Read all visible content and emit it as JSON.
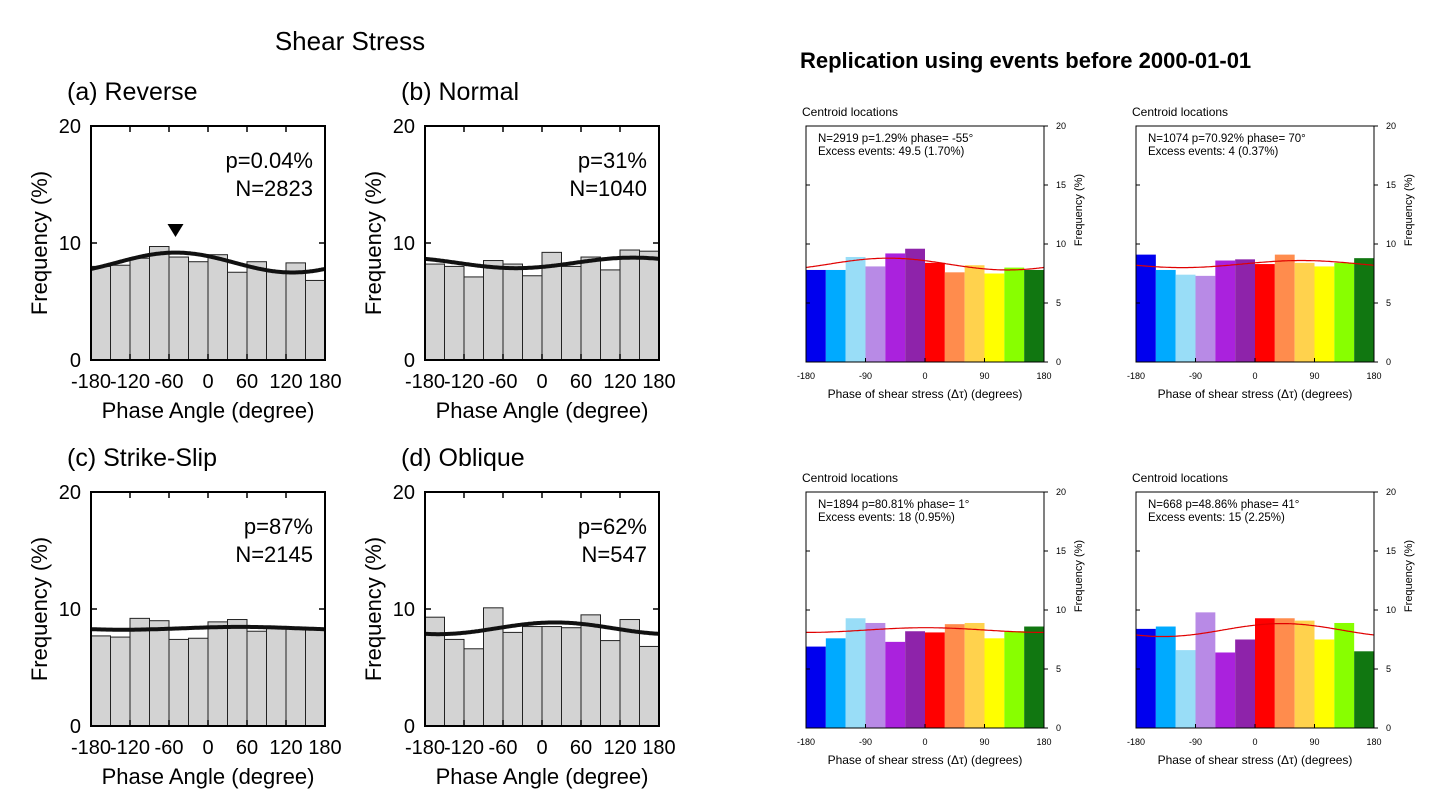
{
  "left_title": "Shear Stress",
  "right_title": "Replication using events before 2000-01-01",
  "chart_data": [
    {
      "type": "bar",
      "style": "gray",
      "title": "(a) Reverse",
      "xlabel": "Phase Angle (degree)",
      "ylabel": "Frequency (%)",
      "xlim": [
        -180,
        180
      ],
      "ylim": [
        0,
        20
      ],
      "xticks": [
        -180,
        -120,
        -60,
        0,
        60,
        120,
        180
      ],
      "yticks": [
        0,
        10,
        20
      ],
      "annotations": [
        "p=0.04%",
        "N=2823"
      ],
      "bin_edges": [
        -180,
        -150,
        -120,
        -90,
        -60,
        -30,
        0,
        30,
        60,
        90,
        120,
        150,
        180
      ],
      "values": [
        8.0,
        8.1,
        8.7,
        9.7,
        8.8,
        8.4,
        9.0,
        7.5,
        8.4,
        7.6,
        8.3,
        6.8
      ],
      "fit": {
        "mean": 8.33,
        "amp": 0.85,
        "phase": -50
      },
      "marker_at": -50
    },
    {
      "type": "bar",
      "style": "gray",
      "title": "(b) Normal",
      "xlabel": "Phase Angle (degree)",
      "ylabel": "Frequency (%)",
      "xlim": [
        -180,
        180
      ],
      "ylim": [
        0,
        20
      ],
      "xticks": [
        -180,
        -120,
        -60,
        0,
        60,
        120,
        180
      ],
      "yticks": [
        0,
        10,
        20
      ],
      "annotations": [
        "p=31%",
        "N=1040"
      ],
      "bin_edges": [
        -180,
        -150,
        -120,
        -90,
        -60,
        -30,
        0,
        30,
        60,
        90,
        120,
        150,
        180
      ],
      "values": [
        8.2,
        8.0,
        7.1,
        8.5,
        8.2,
        7.2,
        9.2,
        8.0,
        8.8,
        7.7,
        9.4,
        9.3
      ],
      "fit": {
        "mean": 8.3,
        "amp": 0.45,
        "phase": 140
      },
      "marker_at": null
    },
    {
      "type": "bar",
      "style": "gray",
      "title": "(c) Strike-Slip",
      "xlabel": "Phase Angle (degree)",
      "ylabel": "Frequency (%)",
      "xlim": [
        -180,
        180
      ],
      "ylim": [
        0,
        20
      ],
      "xticks": [
        -180,
        -120,
        -60,
        0,
        60,
        120,
        180
      ],
      "yticks": [
        0,
        10,
        20
      ],
      "annotations": [
        "p=87%",
        "N=2145"
      ],
      "bin_edges": [
        -180,
        -150,
        -120,
        -90,
        -60,
        -30,
        0,
        30,
        60,
        90,
        120,
        150,
        180
      ],
      "values": [
        7.7,
        7.6,
        9.2,
        9.0,
        7.4,
        7.5,
        8.9,
        9.1,
        8.1,
        8.5,
        8.4,
        8.3
      ],
      "fit": {
        "mean": 8.35,
        "amp": 0.12,
        "phase": 50
      },
      "marker_at": null
    },
    {
      "type": "bar",
      "style": "gray",
      "title": "(d) Oblique",
      "xlabel": "Phase Angle (degree)",
      "ylabel": "Frequency (%)",
      "xlim": [
        -180,
        180
      ],
      "ylim": [
        0,
        20
      ],
      "xticks": [
        -180,
        -120,
        -60,
        0,
        60,
        120,
        180
      ],
      "yticks": [
        0,
        10,
        20
      ],
      "annotations": [
        "p=62%",
        "N=547"
      ],
      "bin_edges": [
        -180,
        -150,
        -120,
        -90,
        -60,
        -30,
        0,
        30,
        60,
        90,
        120,
        150,
        180
      ],
      "values": [
        9.3,
        7.4,
        6.6,
        10.1,
        8.0,
        8.5,
        8.5,
        8.4,
        9.5,
        7.3,
        9.1,
        6.8
      ],
      "fit": {
        "mean": 8.35,
        "amp": 0.5,
        "phase": 20
      },
      "marker_at": null
    },
    {
      "type": "bar",
      "style": "rainbow",
      "title": "Centroid locations",
      "xlabel": "Phase of shear stress (Δτ) (degrees)",
      "ylabel": "Frequency (%)",
      "xlim": [
        -180,
        180
      ],
      "ylim": [
        0,
        20
      ],
      "xticks": [
        -180,
        -90,
        0,
        90,
        180
      ],
      "yticks": [
        0,
        5,
        10,
        15,
        20
      ],
      "annotations": [
        "N=2919   p=1.29%   phase= -55°",
        "Excess events: 49.5 (1.70%)"
      ],
      "bin_edges": [
        -180,
        -150,
        -120,
        -90,
        -60,
        -30,
        0,
        30,
        60,
        90,
        120,
        150,
        180
      ],
      "values": [
        7.8,
        7.8,
        8.9,
        8.1,
        9.2,
        9.6,
        8.4,
        7.6,
        8.2,
        7.5,
        8.0,
        7.8
      ],
      "fit": {
        "mean": 8.3,
        "amp": 0.5,
        "phase": -55
      }
    },
    {
      "type": "bar",
      "style": "rainbow",
      "title": "Centroid locations",
      "xlabel": "Phase of shear stress (Δτ) (degrees)",
      "ylabel": "Frequency (%)",
      "xlim": [
        -180,
        180
      ],
      "ylim": [
        0,
        20
      ],
      "xticks": [
        -180,
        -90,
        0,
        90,
        180
      ],
      "yticks": [
        0,
        5,
        10,
        15,
        20
      ],
      "annotations": [
        "N=1074   p=70.92%   phase= 70°",
        "Excess events: 4 (0.37%)"
      ],
      "bin_edges": [
        -180,
        -150,
        -120,
        -90,
        -60,
        -30,
        0,
        30,
        60,
        90,
        120,
        150,
        180
      ],
      "values": [
        9.1,
        7.8,
        7.4,
        7.3,
        8.6,
        8.7,
        8.3,
        9.1,
        8.4,
        8.1,
        8.4,
        8.8
      ],
      "fit": {
        "mean": 8.3,
        "amp": 0.3,
        "phase": 70
      }
    },
    {
      "type": "bar",
      "style": "rainbow",
      "title": "Centroid locations",
      "xlabel": "Phase of shear stress (Δτ) (degrees)",
      "ylabel": "Frequency (%)",
      "xlim": [
        -180,
        180
      ],
      "ylim": [
        0,
        20
      ],
      "xticks": [
        -180,
        -90,
        0,
        90,
        180
      ],
      "yticks": [
        0,
        5,
        10,
        15,
        20
      ],
      "annotations": [
        "N=1894   p=80.81%   phase= 1°",
        "Excess events: 18 (0.95%)"
      ],
      "bin_edges": [
        -180,
        -150,
        -120,
        -90,
        -60,
        -30,
        0,
        30,
        60,
        90,
        120,
        150,
        180
      ],
      "values": [
        6.9,
        7.6,
        9.3,
        8.9,
        7.3,
        8.2,
        8.1,
        8.8,
        8.9,
        7.6,
        8.2,
        8.6
      ],
      "fit": {
        "mean": 8.3,
        "amp": 0.2,
        "phase": 1
      }
    },
    {
      "type": "bar",
      "style": "rainbow",
      "title": "Centroid locations",
      "xlabel": "Phase of shear stress (Δτ) (degrees)",
      "ylabel": "Frequency (%)",
      "xlim": [
        -180,
        180
      ],
      "ylim": [
        0,
        20
      ],
      "xticks": [
        -180,
        -90,
        0,
        90,
        180
      ],
      "yticks": [
        0,
        5,
        10,
        15,
        20
      ],
      "annotations": [
        "N=668   p=48.86%   phase= 41°",
        "Excess events: 15 (2.25%)"
      ],
      "bin_edges": [
        -180,
        -150,
        -120,
        -90,
        -60,
        -30,
        0,
        30,
        60,
        90,
        120,
        150,
        180
      ],
      "values": [
        8.4,
        8.6,
        6.6,
        9.8,
        6.4,
        7.5,
        9.3,
        9.3,
        9.1,
        7.5,
        8.9,
        6.5
      ],
      "fit": {
        "mean": 8.3,
        "amp": 0.55,
        "phase": 41
      }
    }
  ],
  "colors": {
    "gray_bar": "#d3d3d3",
    "fit_black": "#111111",
    "fit_red": "#e00000",
    "rainbow": [
      "#0000ee",
      "#00aaff",
      "#99ddf7",
      "#b88ae6",
      "#aa22dd",
      "#8e23aa",
      "#ff0000",
      "#ff8c4d",
      "#ffd24d",
      "#ffff00",
      "#88ff00",
      "#117711"
    ]
  }
}
